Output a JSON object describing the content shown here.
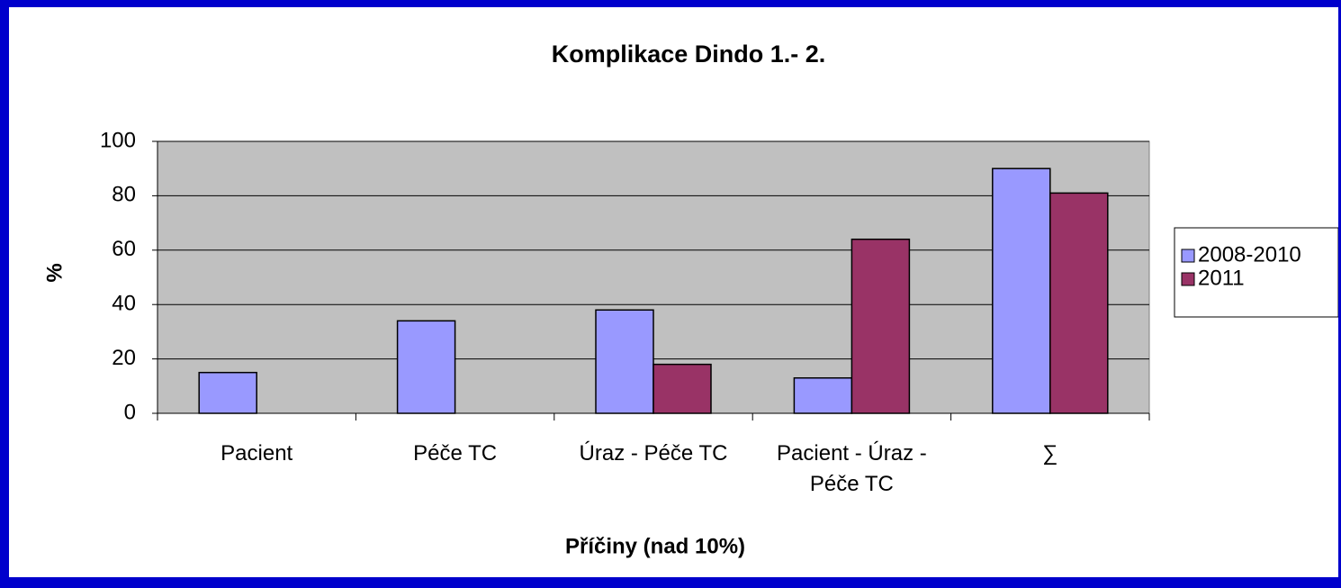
{
  "chart_data": {
    "type": "bar",
    "title": "Komplikace Dindo 1.- 2.",
    "x_label": "Příčiny (nad 10%)",
    "y_label": "%",
    "categories": [
      "Pacient",
      "Péče TC",
      "Úraz - Péče TC",
      "Pacient - Úraz - Péče TC",
      "∑"
    ],
    "series": [
      {
        "name": "2008-2010",
        "color": "#9999ff",
        "values": [
          15,
          34,
          38,
          13,
          90
        ]
      },
      {
        "name": "2011",
        "color": "#993366",
        "values": [
          null,
          null,
          18,
          64,
          81
        ]
      }
    ],
    "ylim": [
      0,
      100
    ],
    "yticks": [
      0,
      20,
      40,
      60,
      80,
      100
    ],
    "grid": true,
    "legend": "right"
  }
}
